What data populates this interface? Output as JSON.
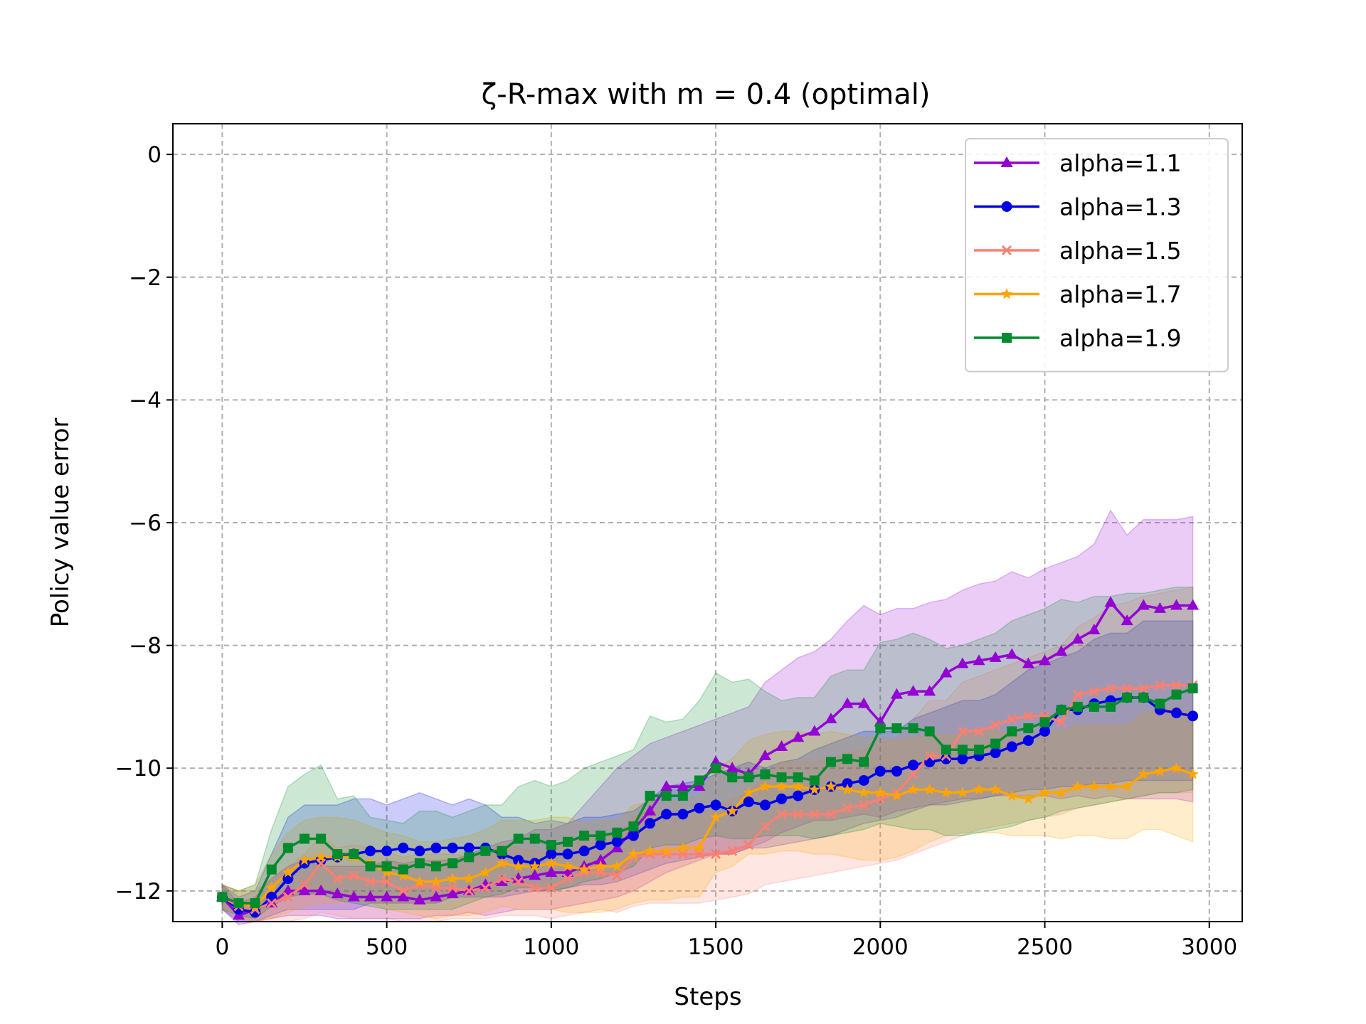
{
  "chart_data": {
    "type": "line",
    "title": "ζ-R-max with m = 0.4 (optimal)",
    "xlabel": "Steps",
    "ylabel": "Policy value error",
    "xlim": [
      -150,
      3100
    ],
    "ylim": [
      -12.5,
      0.5
    ],
    "xticks": [
      0,
      500,
      1000,
      1500,
      2000,
      2500,
      3000
    ],
    "yticks": [
      0,
      -2,
      -4,
      -6,
      -8,
      -10,
      -12
    ],
    "xtick_labels": [
      "0",
      "500",
      "1000",
      "1500",
      "2000",
      "2500",
      "3000"
    ],
    "ytick_labels": [
      "0",
      "−2",
      "−4",
      "−6",
      "−8",
      "−10",
      "−12"
    ],
    "grid": true,
    "legend_position": "top-right",
    "x": [
      0,
      50,
      100,
      150,
      200,
      250,
      300,
      350,
      400,
      450,
      500,
      550,
      600,
      650,
      700,
      750,
      800,
      850,
      900,
      950,
      1000,
      1050,
      1100,
      1150,
      1200,
      1250,
      1300,
      1350,
      1400,
      1450,
      1500,
      1550,
      1600,
      1650,
      1700,
      1750,
      1800,
      1850,
      1900,
      1950,
      2000,
      2050,
      2100,
      2150,
      2200,
      2250,
      2300,
      2350,
      2400,
      2450,
      2500,
      2550,
      2600,
      2650,
      2700,
      2750,
      2800,
      2850,
      2900,
      2950
    ],
    "series": [
      {
        "name": "alpha=1.1",
        "color": "#9400d3",
        "marker": "triangle",
        "values": [
          -12.1,
          -12.4,
          -12.3,
          -12.2,
          -12.0,
          -12.0,
          -12.0,
          -12.05,
          -12.1,
          -12.1,
          -12.1,
          -12.1,
          -12.15,
          -12.1,
          -12.05,
          -12.0,
          -11.9,
          -11.85,
          -11.8,
          -11.75,
          -11.7,
          -11.7,
          -11.6,
          -11.5,
          -11.3,
          -11.0,
          -10.7,
          -10.3,
          -10.3,
          -10.3,
          -9.9,
          -10.0,
          -10.1,
          -9.8,
          -9.65,
          -9.5,
          -9.4,
          -9.2,
          -8.95,
          -8.95,
          -9.25,
          -8.8,
          -8.75,
          -8.75,
          -8.45,
          -8.3,
          -8.25,
          -8.2,
          -8.15,
          -8.3,
          -8.25,
          -8.1,
          -7.9,
          -7.75,
          -7.3,
          -7.6,
          -7.35,
          -7.4,
          -7.35,
          -7.35
        ],
        "upper": [
          -11.9,
          -12.2,
          -12.1,
          -11.8,
          -11.6,
          -11.5,
          -11.6,
          -11.6,
          -11.6,
          -11.6,
          -11.5,
          -11.55,
          -11.5,
          -11.5,
          -11.5,
          -11.4,
          -11.3,
          -11.2,
          -11.15,
          -11.0,
          -11.0,
          -10.9,
          -10.6,
          -10.3,
          -10.0,
          -9.8,
          -9.6,
          -9.5,
          -9.4,
          -9.3,
          -9.2,
          -9.1,
          -9.0,
          -8.6,
          -8.4,
          -8.2,
          -8.1,
          -7.9,
          -7.6,
          -7.35,
          -7.5,
          -7.4,
          -7.4,
          -7.3,
          -7.25,
          -7.1,
          -7.0,
          -6.95,
          -6.8,
          -6.9,
          -6.75,
          -6.65,
          -6.55,
          -6.35,
          -5.8,
          -6.2,
          -5.95,
          -5.95,
          -5.95,
          -5.9
        ],
        "lower": [
          -12.3,
          -12.55,
          -12.5,
          -12.45,
          -12.4,
          -12.4,
          -12.4,
          -12.45,
          -12.45,
          -12.45,
          -12.45,
          -12.45,
          -12.45,
          -12.4,
          -12.4,
          -12.35,
          -12.4,
          -12.35,
          -12.3,
          -12.3,
          -12.3,
          -12.25,
          -12.2,
          -12.15,
          -12.1,
          -12.0,
          -11.85,
          -11.7,
          -11.6,
          -11.5,
          -11.4,
          -11.4,
          -11.3,
          -11.2,
          -11.05,
          -10.95,
          -10.85,
          -10.85,
          -10.8,
          -10.75,
          -10.8,
          -10.7,
          -10.65,
          -10.6,
          -10.55,
          -10.5,
          -10.5,
          -10.45,
          -10.45,
          -10.45,
          -10.45,
          -10.5,
          -10.45,
          -10.5,
          -10.45,
          -10.5,
          -10.5,
          -10.5,
          -10.5,
          -10.55
        ]
      },
      {
        "name": "alpha=1.3",
        "color": "#0000e6",
        "marker": "circle",
        "values": [
          -12.1,
          -12.3,
          -12.35,
          -12.1,
          -11.8,
          -11.55,
          -11.5,
          -11.45,
          -11.4,
          -11.35,
          -11.35,
          -11.3,
          -11.35,
          -11.3,
          -11.3,
          -11.3,
          -11.3,
          -11.4,
          -11.5,
          -11.55,
          -11.4,
          -11.4,
          -11.35,
          -11.25,
          -11.2,
          -11.1,
          -10.9,
          -10.75,
          -10.75,
          -10.65,
          -10.6,
          -10.7,
          -10.55,
          -10.6,
          -10.5,
          -10.45,
          -10.35,
          -10.3,
          -10.25,
          -10.2,
          -10.05,
          -10.05,
          -9.95,
          -9.9,
          -9.85,
          -9.85,
          -9.8,
          -9.75,
          -9.65,
          -9.55,
          -9.4,
          -9.05,
          -9.05,
          -8.95,
          -8.9,
          -8.85,
          -8.85,
          -9.05,
          -9.1,
          -9.15
        ],
        "upper": [
          -11.9,
          -12.1,
          -12.0,
          -11.4,
          -10.8,
          -10.6,
          -10.6,
          -10.6,
          -10.5,
          -10.5,
          -10.6,
          -10.5,
          -10.4,
          -10.5,
          -10.6,
          -10.5,
          -10.6,
          -10.8,
          -10.8,
          -10.9,
          -10.85,
          -10.9,
          -10.8,
          -10.8,
          -10.75,
          -10.7,
          -10.5,
          -10.3,
          -10.25,
          -10.2,
          -10.1,
          -10.0,
          -9.9,
          -10.0,
          -9.9,
          -9.85,
          -9.7,
          -9.6,
          -9.5,
          -9.4,
          -9.4,
          -9.4,
          -9.2,
          -9.1,
          -9.0,
          -8.9,
          -8.9,
          -8.8,
          -8.6,
          -8.4,
          -8.3,
          -8.2,
          -8.1,
          -7.9,
          -7.8,
          -7.8,
          -7.6,
          -7.6,
          -7.6,
          -7.6
        ],
        "lower": [
          -12.3,
          -12.5,
          -12.5,
          -12.4,
          -12.3,
          -12.3,
          -12.3,
          -12.3,
          -12.3,
          -12.2,
          -12.2,
          -12.2,
          -12.2,
          -12.2,
          -12.1,
          -12.1,
          -12.1,
          -12.1,
          -12.05,
          -12.0,
          -12.0,
          -11.95,
          -11.9,
          -11.9,
          -11.85,
          -11.75,
          -11.65,
          -11.55,
          -11.5,
          -11.45,
          -11.4,
          -11.4,
          -11.3,
          -11.3,
          -11.25,
          -11.2,
          -11.15,
          -11.1,
          -11.0,
          -10.9,
          -10.85,
          -10.8,
          -10.7,
          -10.6,
          -10.6,
          -10.55,
          -10.5,
          -10.45,
          -10.4,
          -10.35,
          -10.35,
          -10.3,
          -10.3,
          -10.25,
          -10.25,
          -10.2,
          -10.2,
          -10.2,
          -10.2,
          -10.2
        ]
      },
      {
        "name": "alpha=1.5",
        "color": "#fa8072",
        "marker": "x",
        "values": [
          -12.1,
          -12.25,
          -12.3,
          -12.2,
          -12.1,
          -11.9,
          -11.55,
          -11.8,
          -11.75,
          -11.85,
          -11.85,
          -12.0,
          -11.9,
          -11.95,
          -11.95,
          -12.0,
          -11.95,
          -11.8,
          -11.85,
          -11.95,
          -11.95,
          -11.8,
          -11.7,
          -11.7,
          -11.75,
          -11.45,
          -11.4,
          -11.4,
          -11.4,
          -11.4,
          -11.4,
          -11.35,
          -11.25,
          -10.95,
          -10.75,
          -10.75,
          -10.75,
          -10.75,
          -10.65,
          -10.6,
          -10.5,
          -10.4,
          -10.1,
          -9.8,
          -9.8,
          -9.4,
          -9.4,
          -9.3,
          -9.2,
          -9.15,
          -9.15,
          -9.25,
          -8.8,
          -8.75,
          -8.7,
          -8.7,
          -8.7,
          -8.65,
          -8.65,
          -8.65
        ],
        "upper": [
          -11.9,
          -12.0,
          -12.0,
          -11.8,
          -11.6,
          -11.4,
          -11.1,
          -11.3,
          -11.25,
          -11.3,
          -11.35,
          -11.45,
          -11.4,
          -11.4,
          -11.4,
          -11.45,
          -11.4,
          -11.25,
          -11.3,
          -11.35,
          -11.35,
          -11.2,
          -11.1,
          -11.1,
          -11.1,
          -10.8,
          -10.7,
          -10.7,
          -10.7,
          -10.7,
          -10.6,
          -10.5,
          -10.4,
          -10.1,
          -9.9,
          -9.9,
          -9.9,
          -9.85,
          -9.75,
          -9.7,
          -9.6,
          -9.5,
          -9.2,
          -8.9,
          -8.9,
          -8.6,
          -8.5,
          -8.4,
          -8.3,
          -8.2,
          -8.1,
          -8.0,
          -7.7,
          -7.55,
          -7.35,
          -7.3,
          -7.2,
          -7.15,
          -7.1,
          -7.05
        ],
        "lower": [
          -12.3,
          -12.45,
          -12.5,
          -12.5,
          -12.5,
          -12.45,
          -12.35,
          -12.4,
          -12.45,
          -12.45,
          -12.45,
          -12.5,
          -12.5,
          -12.5,
          -12.45,
          -12.45,
          -12.45,
          -12.4,
          -12.4,
          -12.4,
          -12.45,
          -12.4,
          -12.35,
          -12.3,
          -12.35,
          -12.25,
          -12.2,
          -12.2,
          -12.2,
          -12.2,
          -12.15,
          -12.1,
          -12.05,
          -11.9,
          -11.85,
          -11.8,
          -11.75,
          -11.7,
          -11.65,
          -11.6,
          -11.55,
          -11.5,
          -11.4,
          -11.3,
          -11.2,
          -11.1,
          -11.0,
          -10.95,
          -10.9,
          -10.85,
          -10.8,
          -10.75,
          -10.65,
          -10.6,
          -10.55,
          -10.5,
          -10.45,
          -10.4,
          -10.4,
          -10.4
        ]
      },
      {
        "name": "alpha=1.7",
        "color": "#ffa500",
        "marker": "star",
        "values": [
          -12.1,
          -12.2,
          -12.25,
          -11.95,
          -11.7,
          -11.5,
          -11.45,
          -11.45,
          -11.45,
          -11.55,
          -11.7,
          -11.75,
          -11.85,
          -11.85,
          -11.8,
          -11.8,
          -11.7,
          -11.55,
          -11.6,
          -11.6,
          -11.55,
          -11.6,
          -11.65,
          -11.6,
          -11.6,
          -11.4,
          -11.35,
          -11.35,
          -11.3,
          -11.3,
          -10.8,
          -10.7,
          -10.4,
          -10.3,
          -10.3,
          -10.3,
          -10.35,
          -10.3,
          -10.35,
          -10.4,
          -10.4,
          -10.45,
          -10.35,
          -10.35,
          -10.4,
          -10.4,
          -10.35,
          -10.35,
          -10.45,
          -10.5,
          -10.4,
          -10.4,
          -10.3,
          -10.3,
          -10.3,
          -10.3,
          -10.1,
          -10.05,
          -10.0,
          -10.1
        ],
        "upper": [
          -11.9,
          -12.0,
          -11.9,
          -11.4,
          -11.05,
          -10.85,
          -10.8,
          -10.8,
          -10.85,
          -10.95,
          -11.05,
          -11.1,
          -11.2,
          -11.2,
          -11.15,
          -11.1,
          -11.0,
          -10.85,
          -10.85,
          -10.85,
          -10.8,
          -10.8,
          -10.9,
          -10.85,
          -10.85,
          -10.6,
          -10.55,
          -10.55,
          -10.5,
          -10.45,
          -10.0,
          -9.85,
          -9.55,
          -9.45,
          -9.4,
          -9.4,
          -9.45,
          -9.4,
          -9.45,
          -9.5,
          -9.5,
          -9.55,
          -9.5,
          -9.45,
          -9.45,
          -9.45,
          -9.4,
          -9.4,
          -9.45,
          -9.5,
          -9.4,
          -9.4,
          -9.3,
          -9.3,
          -9.3,
          -9.3,
          -9.1,
          -9.05,
          -9.0,
          -9.1
        ],
        "lower": [
          -12.3,
          -12.4,
          -12.5,
          -12.45,
          -12.35,
          -12.25,
          -12.2,
          -12.2,
          -12.15,
          -12.2,
          -12.3,
          -12.35,
          -12.4,
          -12.45,
          -12.4,
          -12.4,
          -12.35,
          -12.25,
          -12.3,
          -12.3,
          -12.3,
          -12.35,
          -12.35,
          -12.35,
          -12.3,
          -12.2,
          -12.15,
          -12.15,
          -12.1,
          -12.1,
          -11.7,
          -11.6,
          -11.4,
          -11.4,
          -11.35,
          -11.35,
          -11.4,
          -11.4,
          -11.45,
          -11.5,
          -11.5,
          -11.45,
          -11.35,
          -11.2,
          -11.1,
          -11.05,
          -11.05,
          -11.05,
          -11.1,
          -11.1,
          -11.1,
          -11.15,
          -11.1,
          -11.1,
          -11.15,
          -11.15,
          -11.0,
          -11.0,
          -11.1,
          -11.2
        ]
      },
      {
        "name": "alpha=1.9",
        "color": "#008b2e",
        "marker": "square",
        "values": [
          -12.1,
          -12.2,
          -12.2,
          -11.65,
          -11.3,
          -11.15,
          -11.15,
          -11.4,
          -11.4,
          -11.6,
          -11.6,
          -11.65,
          -11.55,
          -11.6,
          -11.55,
          -11.45,
          -11.35,
          -11.35,
          -11.15,
          -11.15,
          -11.25,
          -11.2,
          -11.1,
          -11.1,
          -11.05,
          -10.95,
          -10.45,
          -10.45,
          -10.45,
          -10.2,
          -10.0,
          -10.15,
          -10.15,
          -10.1,
          -10.15,
          -10.15,
          -10.2,
          -9.9,
          -9.85,
          -9.9,
          -9.35,
          -9.35,
          -9.35,
          -9.4,
          -9.7,
          -9.7,
          -9.7,
          -9.6,
          -9.4,
          -9.35,
          -9.25,
          -9.05,
          -9.0,
          -9.0,
          -9.0,
          -8.85,
          -8.85,
          -8.95,
          -8.8,
          -8.7
        ],
        "upper": [
          -11.9,
          -12.0,
          -11.9,
          -11.0,
          -10.3,
          -10.1,
          -9.95,
          -10.5,
          -10.45,
          -10.8,
          -10.85,
          -10.9,
          -10.7,
          -10.7,
          -10.8,
          -10.7,
          -10.6,
          -10.6,
          -10.3,
          -10.2,
          -10.3,
          -10.2,
          -10.0,
          -9.9,
          -9.8,
          -9.7,
          -9.15,
          -9.25,
          -9.2,
          -8.9,
          -8.45,
          -8.6,
          -8.55,
          -8.75,
          -8.9,
          -8.85,
          -8.85,
          -8.5,
          -8.4,
          -8.4,
          -7.95,
          -7.9,
          -7.8,
          -7.9,
          -8.05,
          -8.0,
          -7.9,
          -7.8,
          -7.6,
          -7.5,
          -7.4,
          -7.25,
          -7.3,
          -7.2,
          -7.2,
          -7.15,
          -7.15,
          -7.1,
          -7.05,
          -7.05
        ],
        "lower": [
          -12.3,
          -12.4,
          -12.45,
          -12.25,
          -12.1,
          -12.05,
          -12.05,
          -12.15,
          -12.2,
          -12.25,
          -12.3,
          -12.3,
          -12.3,
          -12.3,
          -12.3,
          -12.2,
          -12.1,
          -12.05,
          -11.95,
          -11.95,
          -12.0,
          -11.95,
          -11.85,
          -11.8,
          -11.7,
          -11.6,
          -11.3,
          -11.25,
          -11.25,
          -11.15,
          -11.1,
          -11.15,
          -11.15,
          -11.1,
          -11.1,
          -11.1,
          -11.15,
          -11.1,
          -11.05,
          -11.0,
          -10.9,
          -10.95,
          -11.0,
          -11.0,
          -11.1,
          -11.1,
          -11.05,
          -11.0,
          -10.95,
          -10.85,
          -10.8,
          -10.7,
          -10.65,
          -10.6,
          -10.55,
          -10.5,
          -10.45,
          -10.4,
          -10.4,
          -10.35
        ]
      }
    ]
  }
}
